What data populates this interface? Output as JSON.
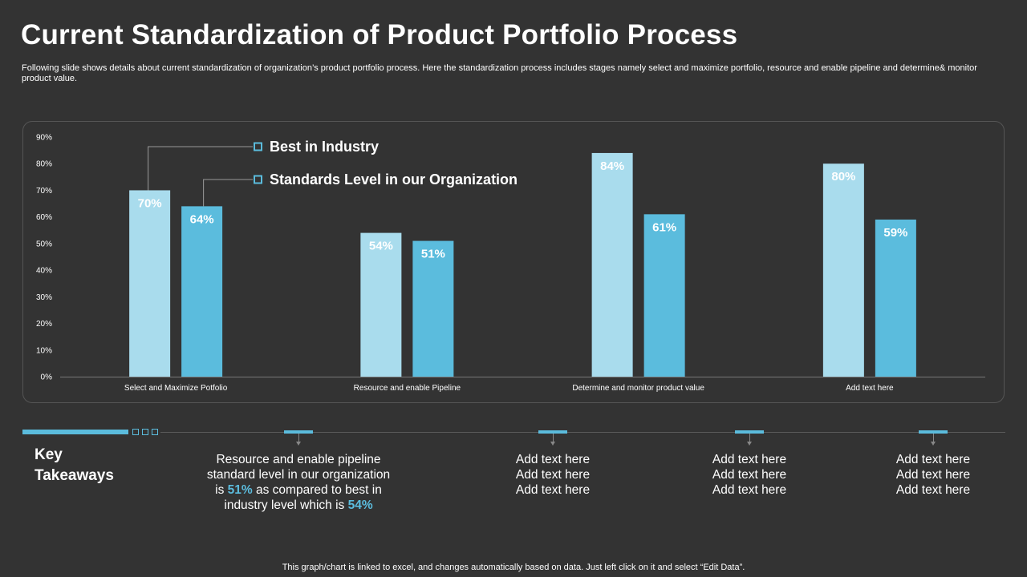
{
  "header": {
    "title": "Current Standardization of Product Portfolio Process",
    "subtitle": "Following slide shows details about current standardization of organization’s product portfolio process. Here the standardization process includes stages namely select and maximize portfolio, resource and enable pipeline and determine& monitor product value."
  },
  "colors": {
    "background": "#333333",
    "series_light": "#a9dced",
    "series_dark": "#5bbcdd",
    "accent": "#5bbcdd"
  },
  "chart_data": {
    "type": "bar",
    "categories": [
      "Select and Maximize Potfolio",
      "Resource and enable Pipeline",
      "Determine and monitor product value",
      "Add text here"
    ],
    "series": [
      {
        "name": "Best in Industry",
        "values": [
          70,
          54,
          84,
          80
        ]
      },
      {
        "name": "Standards Level in our Organization",
        "values": [
          64,
          51,
          61,
          59
        ]
      }
    ],
    "value_suffix": "%",
    "ylim": [
      0,
      90
    ],
    "yticks": [
      "0%",
      "10%",
      "20%",
      "30%",
      "40%",
      "50%",
      "60%",
      "70%",
      "80%",
      "90%"
    ],
    "grid": false,
    "legend_position": "top, connected to first category bars"
  },
  "takeaways": {
    "title_line1": "Key",
    "title_line2": "Takeaways",
    "main": {
      "line1": "Resource and enable pipeline",
      "line2": "standard level in our organization",
      "line3_pre": "is ",
      "line3_value": "51%",
      "line3_post": " as compared to best in",
      "line4_pre": "industry level which is ",
      "line4_value": "54%"
    },
    "items": [
      {
        "line1": "Add text here",
        "line2": "Add text here",
        "line3": "Add text here"
      },
      {
        "line1": "Add text here",
        "line2": "Add text here",
        "line3": "Add text here"
      },
      {
        "line1": "Add text here",
        "line2": "Add text here",
        "line3": "Add text here"
      }
    ]
  },
  "footer": {
    "note": "This graph/chart is linked to excel, and changes automatically based on data. Just left click on it and select “Edit Data”."
  }
}
